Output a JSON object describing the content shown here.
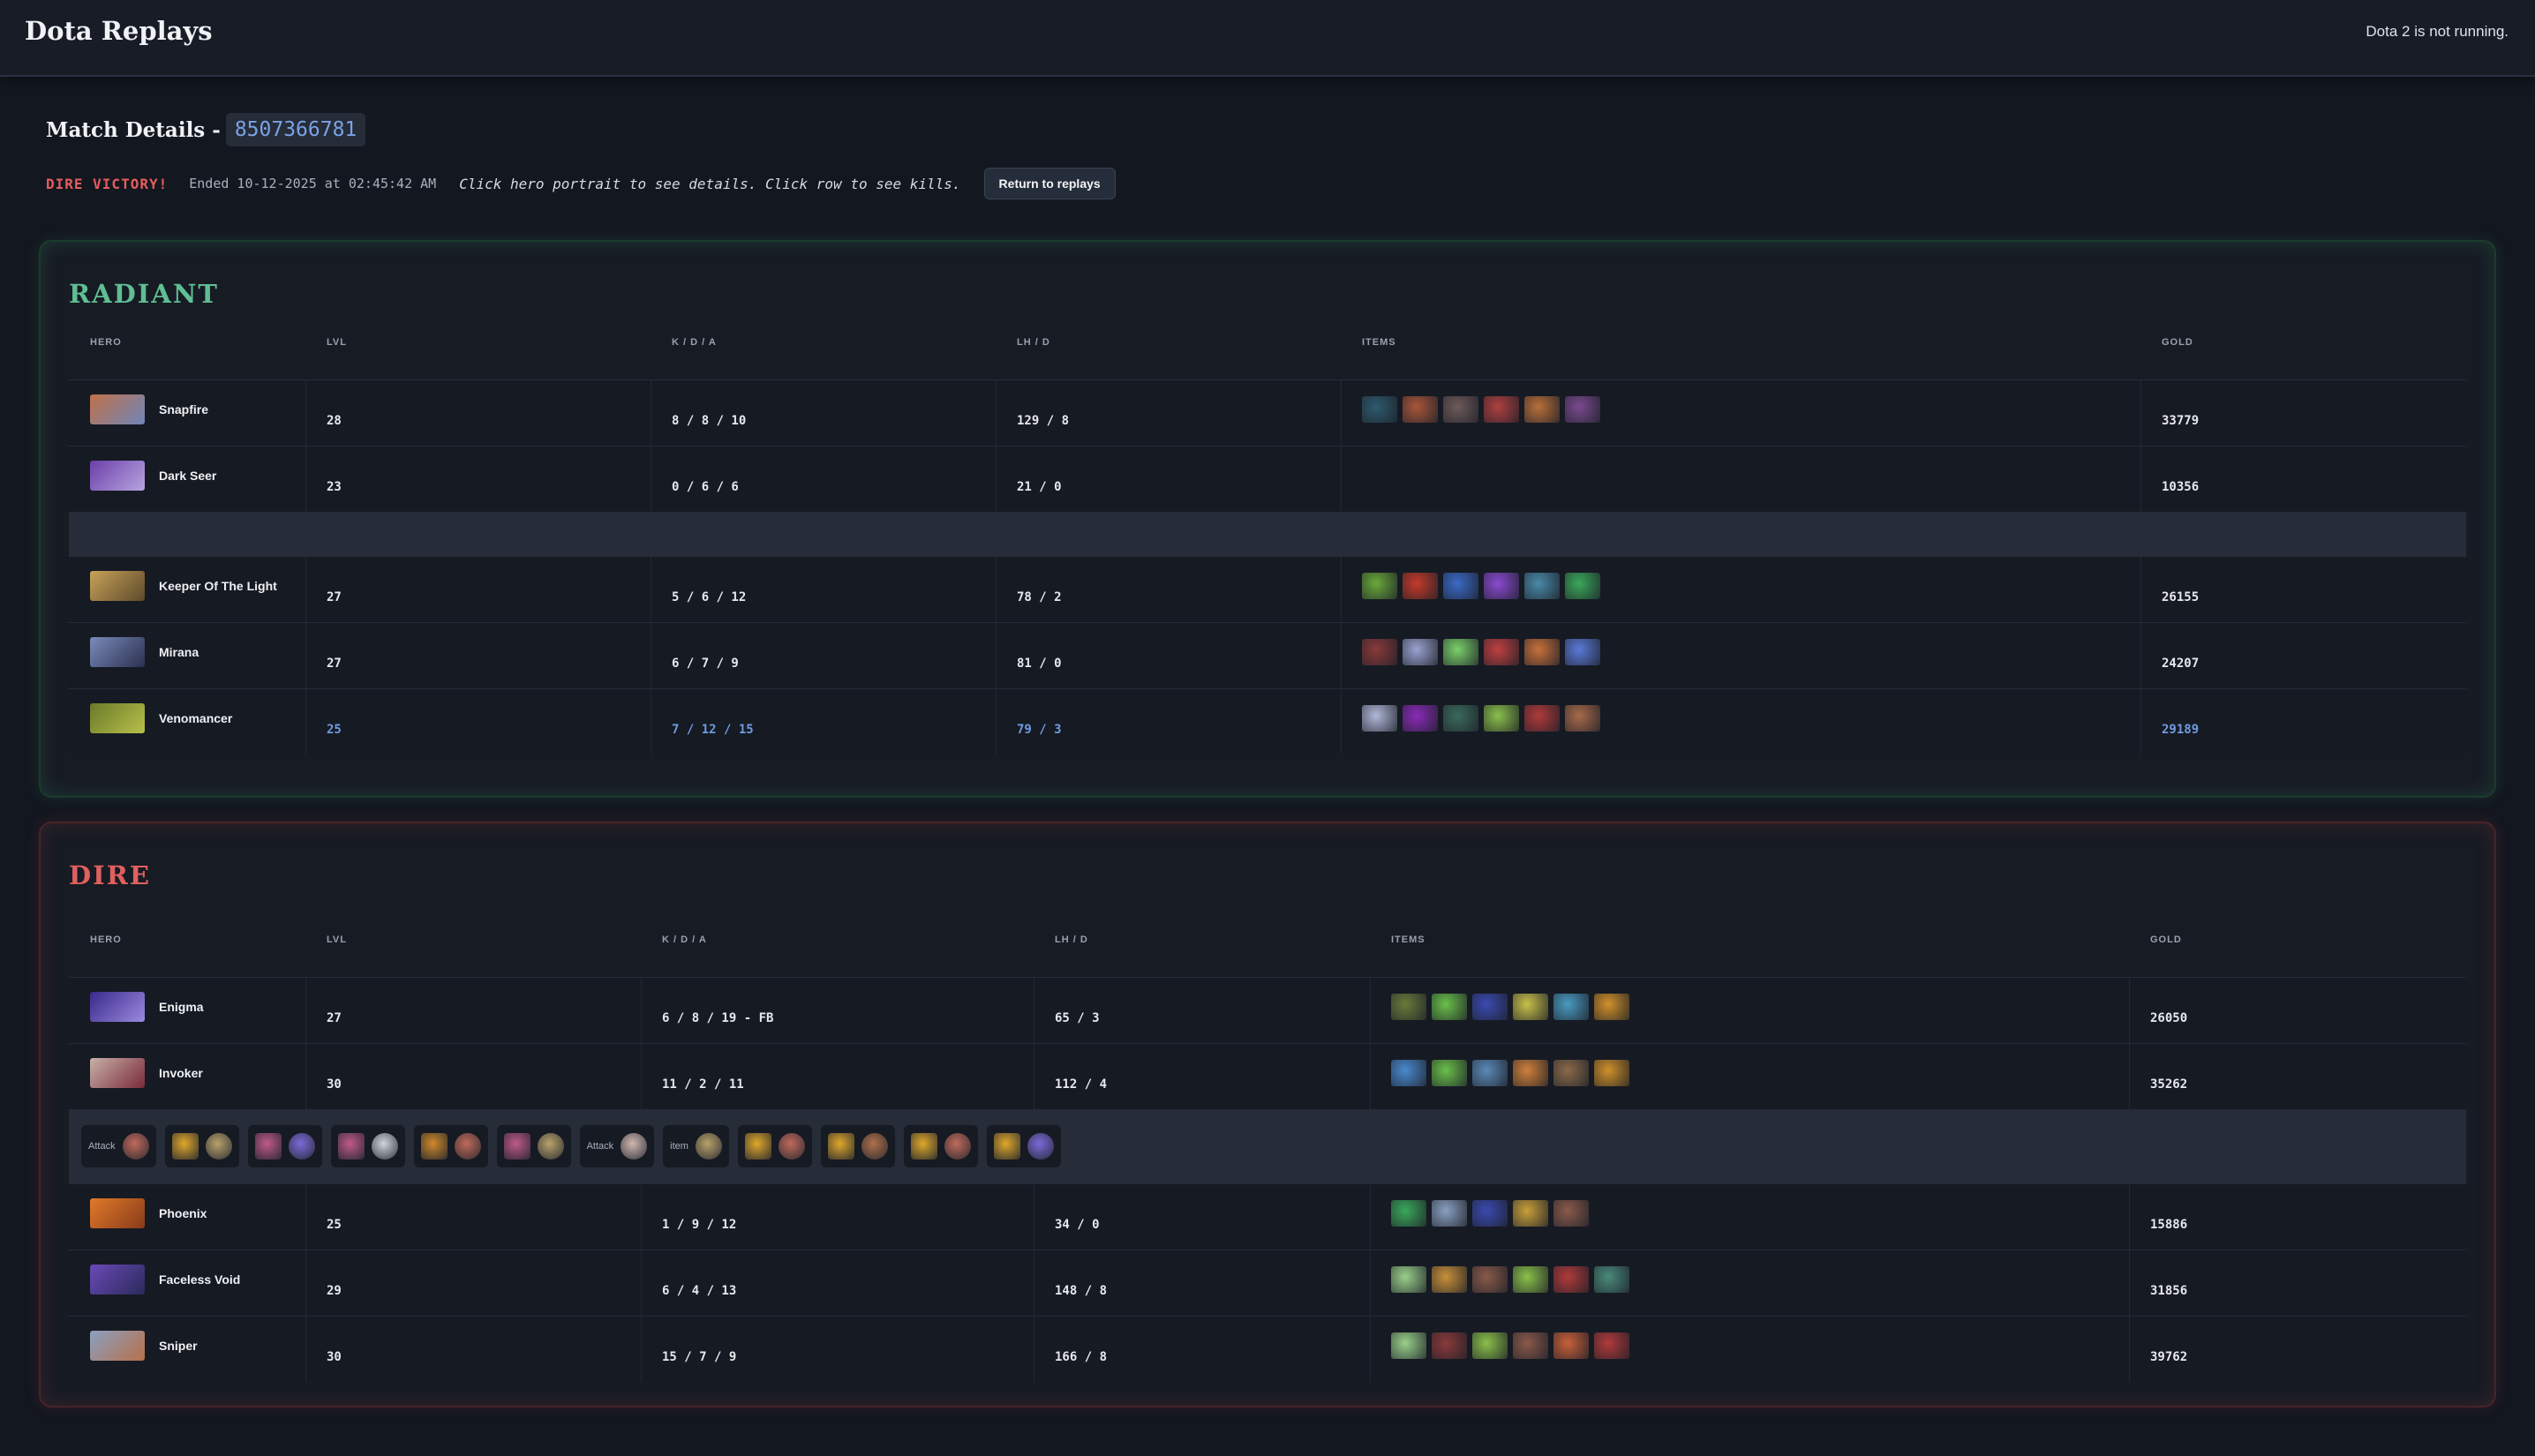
{
  "app": {
    "title": "Dota Replays",
    "status": "Dota 2 is not running."
  },
  "match": {
    "label": "Match Details -",
    "id": "8507366781",
    "result": "DIRE VICTORY!",
    "ended": "Ended 10-12-2025 at 02:45:42 AM",
    "hint": "Click hero portrait to see details. Click row to see kills.",
    "return_label": "Return to replays"
  },
  "columns": {
    "hero": "HERO",
    "lvl": "LVL",
    "kda": "K / D / A",
    "lhd": "LH / D",
    "items": "ITEMS",
    "gold": "GOLD"
  },
  "radiant": {
    "title": "RADIANT",
    "players": [
      {
        "hero": "Snapfire",
        "lvl": "28",
        "kda": "8 / 8 / 10",
        "lhd": "129 / 8",
        "gold": "33779",
        "portrait": [
          "#c0714a",
          "#6f86b8"
        ],
        "items": [
          "#2d5a6e",
          "#a8563a",
          "#6e5a5a",
          "#b04040",
          "#b8703a",
          "#7a4a8e"
        ]
      },
      {
        "hero": "Dark Seer",
        "lvl": "23",
        "kda": "0 / 6 / 6",
        "lhd": "21 / 0",
        "gold": "10356",
        "portrait": [
          "#6b3fa8",
          "#b7a5e0"
        ],
        "items": []
      },
      {
        "hero": "Keeper Of The Light",
        "lvl": "27",
        "kda": "5 / 6 / 12",
        "lhd": "78 / 2",
        "gold": "26155",
        "portrait": [
          "#c8a25a",
          "#5c4a2a"
        ],
        "items": [
          "#6aa83a",
          "#c43a2a",
          "#3a6ac8",
          "#8a4ad0",
          "#4a8aa8",
          "#3aa85a"
        ]
      },
      {
        "hero": "Mirana",
        "lvl": "27",
        "kda": "6 / 7 / 9",
        "lhd": "81 / 0",
        "gold": "24207",
        "portrait": [
          "#7a8ab8",
          "#2a3050"
        ],
        "items": [
          "#8a3a3a",
          "#9aa2d0",
          "#7ad06a",
          "#c04040",
          "#c8703a",
          "#5a7ad8"
        ]
      },
      {
        "hero": "Venomancer",
        "lvl": "25",
        "kda": "7 / 12 / 15",
        "lhd": "79 / 3",
        "gold": "29189",
        "portrait": [
          "#6a7a2a",
          "#b8c04a"
        ],
        "items": [
          "#b0b8d8",
          "#8a2ab8",
          "#3a6a5a",
          "#8ac04a",
          "#b03a3a",
          "#a86a4a"
        ]
      }
    ]
  },
  "dire": {
    "title": "DIRE",
    "players": [
      {
        "hero": "Enigma",
        "lvl": "27",
        "kda": "6 / 8 / 19 - FB",
        "lhd": "65 / 3",
        "gold": "26050",
        "portrait": [
          "#3a2a8a",
          "#9a8ae0"
        ],
        "items": [
          "#6a7a3a",
          "#6ac04a",
          "#3a4ab0",
          "#c8c04a",
          "#4a9ac0",
          "#d0902a"
        ]
      },
      {
        "hero": "Invoker",
        "lvl": "30",
        "kda": "11 / 2 / 11",
        "lhd": "112 / 4",
        "gold": "35262",
        "portrait": [
          "#c8b0a8",
          "#7a2a3a"
        ],
        "items": [
          "#4a8ad0",
          "#6ac04a",
          "#5a8ab8",
          "#d0803a",
          "#8a6a4a",
          "#d0902a"
        ]
      },
      {
        "hero": "Phoenix",
        "lvl": "25",
        "kda": "1 / 9 / 12",
        "lhd": "34 / 0",
        "gold": "15886",
        "portrait": [
          "#e07a2a",
          "#8a3a1a"
        ],
        "items": [
          "#3aa85a",
          "#8aa0c0",
          "#3a4ab0",
          "#c8a03a",
          "#8a5a4a"
        ]
      },
      {
        "hero": "Faceless Void",
        "lvl": "29",
        "kda": "6 / 4 / 13",
        "lhd": "148 / 8",
        "gold": "31856",
        "portrait": [
          "#6a4ab8",
          "#2a2a5a"
        ],
        "items": [
          "#9ad08a",
          "#c8903a",
          "#8a5a4a",
          "#8ac04a",
          "#b03a3a",
          "#4a8a7a"
        ]
      },
      {
        "hero": "Sniper",
        "lvl": "30",
        "kda": "15 / 7 / 9",
        "lhd": "166 / 8",
        "gold": "39762",
        "portrait": [
          "#8aa0c0",
          "#b8704a"
        ],
        "items": [
          "#9ad08a",
          "#8a3a3a",
          "#8ac04a",
          "#8a5a4a",
          "#c8603a",
          "#b03a3a"
        ]
      }
    ],
    "kills": [
      {
        "label": "Attack",
        "icons": [
          "#c06a5a"
        ]
      },
      {
        "label": "",
        "icons": [
          "#e0a82a",
          "#b8a26a"
        ]
      },
      {
        "label": "",
        "icons": [
          "#c05a8a",
          "#7a6ad8"
        ]
      },
      {
        "label": "",
        "icons": [
          "#c05a8a",
          "#d0d4dc"
        ]
      },
      {
        "label": "",
        "icons": [
          "#d08a2a",
          "#c06a5a"
        ]
      },
      {
        "label": "",
        "icons": [
          "#c05a8a",
          "#b8a26a"
        ]
      },
      {
        "label": "Attack",
        "icons": [
          "#d0b8b0"
        ]
      },
      {
        "label": "item",
        "icons": [
          "#b8a26a"
        ]
      },
      {
        "label": "",
        "icons": [
          "#e0a82a",
          "#c06a5a"
        ]
      },
      {
        "label": "",
        "icons": [
          "#e0a82a",
          "#b0704a"
        ]
      },
      {
        "label": "",
        "icons": [
          "#e0a82a",
          "#c06a5a"
        ]
      },
      {
        "label": "",
        "icons": [
          "#e0a82a",
          "#7a6ad8"
        ]
      }
    ]
  }
}
